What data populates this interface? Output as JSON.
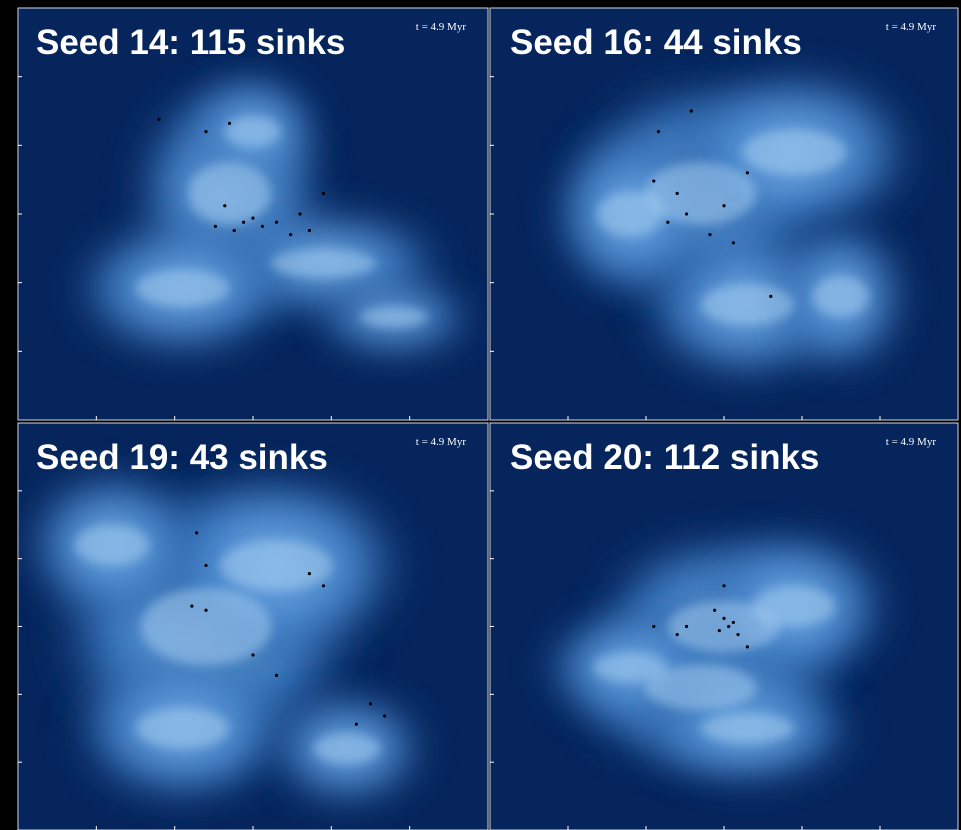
{
  "panels": [
    {
      "title": "Seed 14: 115 sinks",
      "time": "t = 4.9 Myr"
    },
    {
      "title": "Seed 16: 44 sinks",
      "time": "t = 4.9 Myr"
    },
    {
      "title": "Seed 19: 43 sinks",
      "time": "t = 4.9 Myr"
    },
    {
      "title": "Seed 20: 112 sinks",
      "time": "t = 4.9 Myr"
    }
  ]
}
